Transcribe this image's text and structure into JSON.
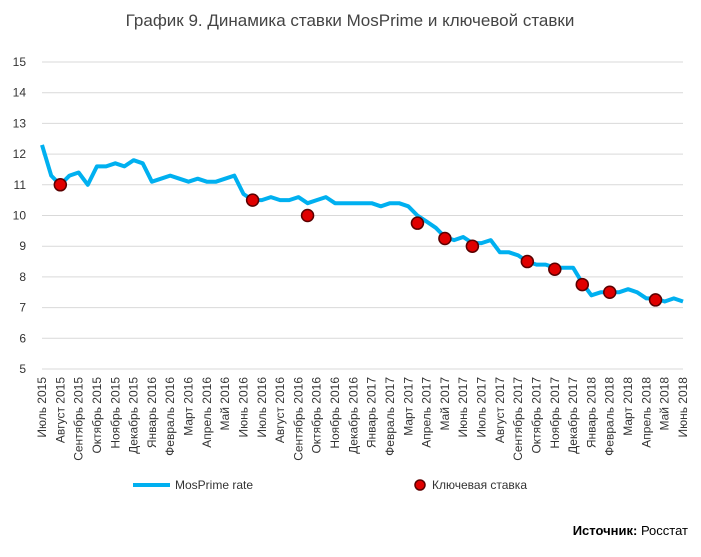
{
  "chart_data": {
    "type": "line",
    "title": "График 9. Динамика ставки MosPrime и ключевой ставки",
    "categories": [
      "Июль 2015",
      null,
      "Август 2015",
      null,
      "Сентябрь 2015",
      null,
      "Октябрь 2015",
      null,
      "Ноябрь 2015",
      null,
      "Декабрь 2015",
      null,
      "Январь 2016",
      null,
      "Февраль 2016",
      null,
      "Март 2016",
      null,
      "Апрель 2016",
      null,
      "Май 2016",
      null,
      "Июнь 2016",
      null,
      "Июль 2016",
      null,
      "Август 2016",
      null,
      "Сентябрь 2016",
      null,
      "Октябрь 2016",
      null,
      "Ноябрь 2016",
      null,
      "Декабрь 2016",
      null,
      "Январь 2017",
      null,
      "Февраль 2017",
      null,
      "Март 2017",
      null,
      "Апрель 2017",
      null,
      "Май 2017",
      null,
      "Июнь 2017",
      null,
      "Июль 2017",
      null,
      "Август 2017",
      null,
      "Сентябрь 2017",
      null,
      "Октябрь 2017",
      null,
      "Ноябрь 2017",
      null,
      "Декабрь 2017",
      null,
      "Январь 2018",
      null,
      "Февраль 2018",
      null,
      "Март 2018",
      null,
      "Апрель 2018",
      null,
      "Май 2018",
      null,
      "Июнь 2018"
    ],
    "series": [
      {
        "name": "MosPrime rate",
        "color": "#00b0f0",
        "type": "line",
        "values": [
          12.3,
          11.3,
          11.0,
          11.3,
          11.4,
          11.0,
          11.6,
          11.6,
          11.7,
          11.6,
          11.8,
          11.7,
          11.1,
          11.2,
          11.3,
          11.2,
          11.1,
          11.2,
          11.1,
          11.1,
          11.2,
          11.3,
          10.7,
          10.5,
          10.5,
          10.6,
          10.5,
          10.5,
          10.6,
          10.4,
          10.5,
          10.6,
          10.4,
          10.4,
          10.4,
          10.4,
          10.4,
          10.3,
          10.4,
          10.4,
          10.3,
          10.0,
          9.8,
          9.6,
          9.3,
          9.2,
          9.3,
          9.1,
          9.1,
          9.2,
          8.8,
          8.8,
          8.7,
          8.5,
          8.4,
          8.4,
          8.3,
          8.3,
          8.3,
          7.8,
          7.4,
          7.5,
          7.5,
          7.5,
          7.6,
          7.5,
          7.3,
          7.3,
          7.2,
          7.3,
          7.2
        ]
      },
      {
        "name": "Ключевая ставка",
        "color": "#e00000",
        "type": "scatter",
        "values": [
          null,
          null,
          11.0,
          null,
          null,
          null,
          null,
          null,
          null,
          null,
          null,
          null,
          null,
          null,
          null,
          null,
          null,
          null,
          null,
          null,
          null,
          null,
          null,
          10.5,
          null,
          null,
          null,
          null,
          null,
          10.0,
          null,
          null,
          null,
          null,
          null,
          null,
          null,
          null,
          null,
          null,
          null,
          9.75,
          null,
          null,
          9.25,
          null,
          null,
          9.0,
          null,
          null,
          null,
          null,
          null,
          8.5,
          null,
          null,
          8.25,
          null,
          null,
          7.75,
          null,
          null,
          7.5,
          null,
          null,
          null,
          null,
          7.25,
          null,
          null,
          null
        ]
      }
    ],
    "ylim": [
      5,
      15
    ],
    "yticks": [
      5,
      6,
      7,
      8,
      9,
      10,
      11,
      12,
      13,
      14,
      15
    ],
    "grid": true,
    "source_label": "Источник:",
    "source": "Росстат"
  }
}
